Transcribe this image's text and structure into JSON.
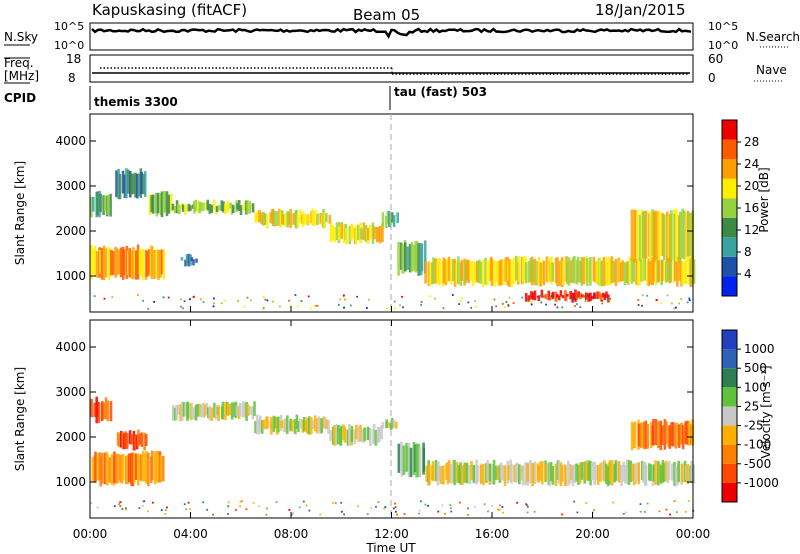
{
  "header": {
    "station": "Kapuskasing (fitACF)",
    "beam": "Beam 05",
    "date": "18/Jan/2015"
  },
  "noise_panel": {
    "left_label": "N.Sky",
    "left_ticks": [
      "10^5",
      "10^0"
    ],
    "right_ticks": [
      "10^5",
      "10^0"
    ],
    "right_label": "N.Search"
  },
  "freq_panel": {
    "left_label_top": "Freq.",
    "left_label_unit": "[MHz]",
    "left_ticks": [
      "18",
      "8"
    ],
    "right_ticks": [
      "60",
      "0"
    ],
    "right_label": "Nave"
  },
  "cpid": {
    "label": "CPID",
    "segments": [
      {
        "name": "themis 3300",
        "start_h": 0
      },
      {
        "name": "tau (fast) 503",
        "start_h": 12
      }
    ]
  },
  "colors": {
    "power": [
      "#0022ee",
      "#1f4fa6",
      "#3aa3a0",
      "#3d8a45",
      "#95d23c",
      "#ffee00",
      "#ff9e00",
      "#ff5a00",
      "#ee0000"
    ],
    "velocity": [
      "#2040c0",
      "#2f62b5",
      "#2e7f52",
      "#5ec33a",
      "#c8c8c8",
      "#ffb000",
      "#ff7e00",
      "#ff4800",
      "#ee0000"
    ]
  },
  "chart_data": [
    {
      "type": "heatmap",
      "quantity": "power",
      "ylabel": "Slant Range [km]",
      "y_ticks": [
        "1000",
        "2000",
        "3000",
        "4000"
      ],
      "ylim": [
        200,
        4600
      ],
      "xlim": [
        0,
        24
      ],
      "colorbar_label": "Power [dB]",
      "colorbar_ticks": [
        "4",
        "8",
        "12",
        "16",
        "20",
        "24",
        "28"
      ],
      "bands": [
        {
          "t0": 0.0,
          "t1": 2.9,
          "r0": 900,
          "r1": 1700,
          "level": 6
        },
        {
          "t0": 0.0,
          "t1": 0.8,
          "r0": 2300,
          "r1": 2900,
          "level": 3
        },
        {
          "t0": 1.0,
          "t1": 2.2,
          "r0": 2700,
          "r1": 3400,
          "level": 2
        },
        {
          "t0": 2.3,
          "t1": 3.2,
          "r0": 2300,
          "r1": 2900,
          "level": 4
        },
        {
          "t0": 3.2,
          "t1": 6.5,
          "r0": 2350,
          "r1": 2700,
          "level": 4
        },
        {
          "t0": 6.5,
          "t1": 9.5,
          "r0": 2050,
          "r1": 2500,
          "level": 5
        },
        {
          "t0": 9.5,
          "t1": 11.6,
          "r0": 1700,
          "r1": 2200,
          "level": 5
        },
        {
          "t0": 11.6,
          "t1": 12.2,
          "r0": 2050,
          "r1": 2450,
          "level": 3
        },
        {
          "t0": 12.2,
          "t1": 13.3,
          "r0": 1000,
          "r1": 1800,
          "level": 3
        },
        {
          "t0": 13.3,
          "t1": 24.0,
          "r0": 750,
          "r1": 1450,
          "level": 5
        },
        {
          "t0": 17.3,
          "t1": 20.6,
          "r0": 400,
          "r1": 700,
          "level": 8
        },
        {
          "t0": 21.5,
          "t1": 24.0,
          "r0": 1300,
          "r1": 2500,
          "level": 5
        },
        {
          "t0": 3.6,
          "t1": 4.2,
          "r0": 1200,
          "r1": 1500,
          "level": 2
        }
      ]
    },
    {
      "type": "heatmap",
      "quantity": "velocity",
      "ylabel": "Slant Range [km]",
      "y_ticks": [
        "1000",
        "2000",
        "3000",
        "4000"
      ],
      "ylim": [
        200,
        4600
      ],
      "xlim": [
        0,
        24
      ],
      "x_ticks": [
        "00:00",
        "04:00",
        "08:00",
        "12:00",
        "16:00",
        "20:00",
        "00:00"
      ],
      "xlabel": "Time UT",
      "colorbar_label": "Velocity [m s⁻¹]",
      "colorbar_ticks": [
        "1000",
        "500",
        "100",
        "25",
        "-25",
        "-100",
        "-500",
        "-1000"
      ],
      "bands": [
        {
          "t0": 0.0,
          "t1": 2.9,
          "r0": 900,
          "r1": 1700,
          "level": 6
        },
        {
          "t0": 1.0,
          "t1": 2.2,
          "r0": 1700,
          "r1": 2200,
          "level": 7
        },
        {
          "t0": 0.0,
          "t1": 0.8,
          "r0": 2300,
          "r1": 2900,
          "level": 7
        },
        {
          "t0": 3.2,
          "t1": 6.5,
          "r0": 2350,
          "r1": 2800,
          "level": 4
        },
        {
          "t0": 6.5,
          "t1": 9.5,
          "r0": 2050,
          "r1": 2500,
          "level": 4
        },
        {
          "t0": 9.5,
          "t1": 11.6,
          "r0": 1800,
          "r1": 2300,
          "level": 4
        },
        {
          "t0": 11.6,
          "t1": 12.2,
          "r0": 2100,
          "r1": 2450,
          "level": 4
        },
        {
          "t0": 12.2,
          "t1": 13.3,
          "r0": 1100,
          "r1": 1900,
          "level": 3
        },
        {
          "t0": 13.3,
          "t1": 24.0,
          "r0": 900,
          "r1": 1500,
          "level": 4
        },
        {
          "t0": 21.5,
          "t1": 24.0,
          "r0": 1700,
          "r1": 2400,
          "level": 6
        }
      ]
    }
  ]
}
